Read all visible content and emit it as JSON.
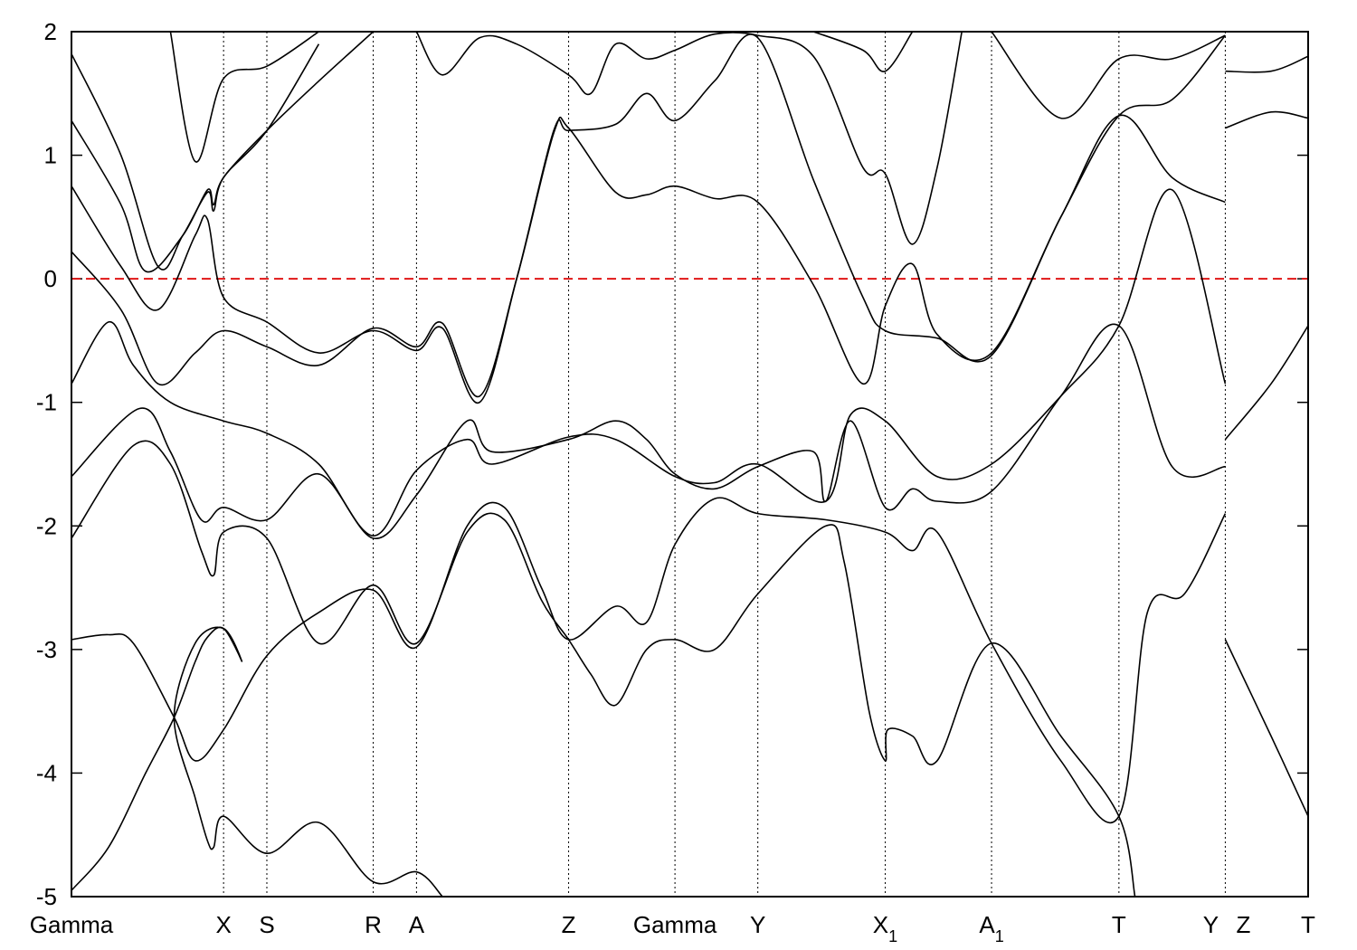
{
  "chart_data": {
    "type": "line",
    "title": "",
    "xlabel": "",
    "ylabel": "",
    "xlim": [
      0,
      1.0
    ],
    "ylim": [
      -5,
      2
    ],
    "yticks": [
      2,
      1,
      0,
      -1,
      -2,
      -3,
      -4,
      -5
    ],
    "ytick_labels": [
      "2",
      "1",
      "0",
      "-1",
      "-2",
      "-3",
      "-4",
      "-5"
    ],
    "grid": false,
    "legend": "none",
    "fermi_level": {
      "value": 0,
      "color": "#dd0000",
      "style": "dashed"
    },
    "colors": {
      "bands": "#000000"
    },
    "kpoints": [
      {
        "pos": 0.0,
        "label": "Gamma",
        "sub": ""
      },
      {
        "pos": 0.123,
        "label": "X",
        "sub": ""
      },
      {
        "pos": 0.158,
        "label": "S",
        "sub": ""
      },
      {
        "pos": 0.244,
        "label": "R",
        "sub": ""
      },
      {
        "pos": 0.279,
        "label": "A",
        "sub": ""
      },
      {
        "pos": 0.402,
        "label": "Z",
        "sub": ""
      },
      {
        "pos": 0.488,
        "label": "Gamma",
        "sub": ""
      },
      {
        "pos": 0.555,
        "label": "Y",
        "sub": ""
      },
      {
        "pos": 0.658,
        "label": "X",
        "sub": "1"
      },
      {
        "pos": 0.744,
        "label": "A",
        "sub": "1"
      },
      {
        "pos": 0.847,
        "label": "T",
        "sub": ""
      },
      {
        "pos": 0.933,
        "label": "Y",
        "sub": ""
      },
      {
        "pos": 0.933,
        "label": "Z",
        "sub": ""
      },
      {
        "pos": 1.0,
        "label": "T",
        "sub": ""
      }
    ],
    "series": [
      {
        "values": [
          [
            0,
            -4.95
          ],
          [
            0.03,
            -4.6
          ],
          [
            0.06,
            -4.0
          ],
          [
            0.083,
            -3.55
          ],
          [
            0.1,
            -3.1
          ],
          [
            0.11,
            -2.9
          ],
          [
            0.123,
            -2.83
          ],
          [
            0.138,
            -3.1
          ],
          [
            0.123,
            -2.83
          ],
          [
            0.1,
            -2.95
          ],
          [
            0.083,
            -3.55
          ],
          [
            0.1,
            -4.2
          ],
          [
            0.11,
            -4.55
          ],
          [
            0.115,
            -4.6
          ],
          [
            0.123,
            -4.35
          ],
          [
            0.158,
            -4.65
          ],
          [
            0.2,
            -4.4
          ],
          [
            0.244,
            -4.88
          ],
          [
            0.279,
            -4.8
          ],
          [
            0.3,
            -5.0
          ]
        ]
      },
      {
        "values": [
          [
            0,
            -2.92
          ],
          [
            0.03,
            -2.88
          ],
          [
            0.05,
            -2.95
          ],
          [
            0.083,
            -3.55
          ],
          [
            0.1,
            -3.9
          ],
          [
            0.123,
            -3.65
          ],
          [
            0.158,
            -3.05
          ],
          [
            0.2,
            -2.7
          ],
          [
            0.244,
            -2.52
          ],
          [
            0.279,
            -2.98
          ],
          [
            0.32,
            -2.0
          ],
          [
            0.35,
            -1.85
          ],
          [
            0.38,
            -2.5
          ],
          [
            0.402,
            -2.92
          ],
          [
            0.44,
            -2.65
          ],
          [
            0.465,
            -2.78
          ],
          [
            0.488,
            -2.15
          ],
          [
            0.52,
            -1.78
          ],
          [
            0.555,
            -1.9
          ],
          [
            0.61,
            -1.95
          ],
          [
            0.658,
            -2.05
          ],
          [
            0.68,
            -2.2
          ],
          [
            0.7,
            -2.05
          ],
          [
            0.744,
            -2.95
          ],
          [
            0.8,
            -3.9
          ],
          [
            0.847,
            -4.35
          ],
          [
            0.87,
            -2.7
          ],
          [
            0.9,
            -2.55
          ],
          [
            0.933,
            -1.9
          ]
        ]
      },
      {
        "values": [
          [
            0,
            -2.1
          ],
          [
            0.05,
            -1.35
          ],
          [
            0.08,
            -1.5
          ],
          [
            0.105,
            -2.2
          ],
          [
            0.115,
            -2.4
          ],
          [
            0.123,
            -2.05
          ],
          [
            0.158,
            -2.1
          ],
          [
            0.2,
            -2.95
          ],
          [
            0.244,
            -2.48
          ],
          [
            0.279,
            -2.95
          ],
          [
            0.32,
            -2.05
          ],
          [
            0.35,
            -1.95
          ],
          [
            0.38,
            -2.6
          ],
          [
            0.402,
            -2.92
          ],
          [
            0.42,
            -3.2
          ],
          [
            0.44,
            -3.45
          ],
          [
            0.465,
            -3.0
          ],
          [
            0.488,
            -2.92
          ],
          [
            0.52,
            -3.0
          ],
          [
            0.555,
            -2.55
          ],
          [
            0.61,
            -2.0
          ],
          [
            0.625,
            -2.3
          ],
          [
            0.645,
            -3.5
          ],
          [
            0.658,
            -3.9
          ],
          [
            0.66,
            -3.65
          ],
          [
            0.68,
            -3.7
          ],
          [
            0.7,
            -3.9
          ],
          [
            0.744,
            -2.95
          ],
          [
            0.8,
            -3.7
          ],
          [
            0.847,
            -4.35
          ],
          [
            0.86,
            -5.0
          ]
        ]
      },
      {
        "values": [
          [
            0,
            -1.6
          ],
          [
            0.055,
            -1.05
          ],
          [
            0.08,
            -1.4
          ],
          [
            0.105,
            -1.95
          ],
          [
            0.123,
            -1.85
          ],
          [
            0.158,
            -1.95
          ],
          [
            0.2,
            -1.58
          ],
          [
            0.244,
            -2.1
          ],
          [
            0.279,
            -1.75
          ],
          [
            0.32,
            -1.15
          ],
          [
            0.34,
            -1.4
          ],
          [
            0.402,
            -1.3
          ],
          [
            0.44,
            -1.15
          ],
          [
            0.465,
            -1.3
          ],
          [
            0.488,
            -1.58
          ],
          [
            0.52,
            -1.7
          ],
          [
            0.555,
            -1.52
          ],
          [
            0.6,
            -1.4
          ],
          [
            0.61,
            -1.8
          ],
          [
            0.63,
            -1.15
          ],
          [
            0.658,
            -1.85
          ],
          [
            0.68,
            -1.7
          ],
          [
            0.7,
            -1.8
          ],
          [
            0.744,
            -1.72
          ],
          [
            0.8,
            -0.95
          ],
          [
            0.847,
            -0.38
          ],
          [
            0.89,
            -1.52
          ],
          [
            0.933,
            -1.52
          ]
        ]
      },
      {
        "values": [
          [
            0,
            -0.85
          ],
          [
            0.03,
            -0.35
          ],
          [
            0.05,
            -0.7
          ],
          [
            0.08,
            -1.0
          ],
          [
            0.123,
            -1.15
          ],
          [
            0.158,
            -1.25
          ],
          [
            0.2,
            -1.5
          ],
          [
            0.244,
            -2.08
          ],
          [
            0.279,
            -1.55
          ],
          [
            0.32,
            -1.3
          ],
          [
            0.34,
            -1.5
          ],
          [
            0.402,
            -1.28
          ],
          [
            0.44,
            -1.3
          ],
          [
            0.488,
            -1.6
          ],
          [
            0.52,
            -1.65
          ],
          [
            0.555,
            -1.5
          ],
          [
            0.61,
            -1.8
          ],
          [
            0.63,
            -1.1
          ],
          [
            0.658,
            -1.15
          ],
          [
            0.7,
            -1.6
          ],
          [
            0.744,
            -1.5
          ],
          [
            0.8,
            -0.95
          ],
          [
            0.847,
            -0.38
          ],
          [
            0.89,
            0.72
          ],
          [
            0.933,
            -0.85
          ]
        ]
      },
      {
        "values": [
          [
            0,
            0.22
          ],
          [
            0.04,
            -0.25
          ],
          [
            0.07,
            -0.85
          ],
          [
            0.1,
            -0.6
          ],
          [
            0.123,
            -0.42
          ],
          [
            0.158,
            -0.55
          ],
          [
            0.2,
            -0.7
          ],
          [
            0.244,
            -0.4
          ],
          [
            0.279,
            -0.55
          ],
          [
            0.3,
            -0.36
          ],
          [
            0.33,
            -0.95
          ],
          [
            0.36,
            0.0
          ],
          [
            0.39,
            1.18
          ],
          [
            0.402,
            1.22
          ],
          [
            0.44,
            0.7
          ],
          [
            0.465,
            0.68
          ],
          [
            0.488,
            0.75
          ],
          [
            0.52,
            0.65
          ],
          [
            0.555,
            0.62
          ],
          [
            0.6,
            -0.05
          ],
          [
            0.64,
            -0.85
          ],
          [
            0.658,
            -0.22
          ],
          [
            0.68,
            0.12
          ],
          [
            0.7,
            -0.45
          ],
          [
            0.744,
            -0.6
          ],
          [
            0.8,
            0.5
          ],
          [
            0.847,
            1.32
          ],
          [
            0.89,
            0.82
          ],
          [
            0.933,
            0.62
          ]
        ]
      },
      {
        "values": [
          [
            0,
            0.75
          ],
          [
            0.04,
            0.1
          ],
          [
            0.07,
            -0.25
          ],
          [
            0.1,
            0.35
          ],
          [
            0.11,
            0.48
          ],
          [
            0.123,
            -0.15
          ],
          [
            0.158,
            -0.35
          ],
          [
            0.2,
            -0.6
          ],
          [
            0.244,
            -0.42
          ],
          [
            0.279,
            -0.58
          ],
          [
            0.3,
            -0.4
          ],
          [
            0.33,
            -1.0
          ],
          [
            0.36,
            0.0
          ],
          [
            0.39,
            1.2
          ],
          [
            0.402,
            1.2
          ],
          [
            0.44,
            1.25
          ],
          [
            0.465,
            1.5
          ],
          [
            0.488,
            1.28
          ],
          [
            0.52,
            1.6
          ],
          [
            0.555,
            1.95
          ],
          [
            0.6,
            0.8
          ],
          [
            0.64,
            -0.15
          ],
          [
            0.658,
            -0.42
          ],
          [
            0.7,
            -0.48
          ],
          [
            0.744,
            -0.62
          ],
          [
            0.8,
            0.5
          ],
          [
            0.847,
            1.32
          ],
          [
            0.89,
            1.45
          ],
          [
            0.933,
            1.97
          ]
        ]
      },
      {
        "values": [
          [
            0,
            1.28
          ],
          [
            0.04,
            0.6
          ],
          [
            0.06,
            0.06
          ],
          [
            0.09,
            0.35
          ],
          [
            0.11,
            0.72
          ],
          [
            0.115,
            0.6
          ],
          [
            0.123,
            0.82
          ],
          [
            0.158,
            1.2
          ],
          [
            0.2,
            1.6
          ],
          [
            0.244,
            2.0
          ]
        ]
      },
      {
        "values": [
          [
            0,
            1.82
          ],
          [
            0.04,
            1.0
          ],
          [
            0.07,
            0.1
          ],
          [
            0.09,
            0.35
          ],
          [
            0.11,
            0.7
          ],
          [
            0.115,
            0.55
          ],
          [
            0.123,
            0.82
          ],
          [
            0.158,
            1.2
          ],
          [
            0.2,
            1.9
          ]
        ]
      },
      {
        "values": [
          [
            0.08,
            2.0
          ],
          [
            0.1,
            0.95
          ],
          [
            0.123,
            1.62
          ],
          [
            0.158,
            1.72
          ],
          [
            0.2,
            2.0
          ]
        ]
      },
      {
        "values": [
          [
            0.279,
            2.0
          ],
          [
            0.3,
            1.65
          ],
          [
            0.33,
            1.95
          ],
          [
            0.36,
            1.9
          ],
          [
            0.402,
            1.65
          ],
          [
            0.42,
            1.5
          ],
          [
            0.44,
            1.9
          ],
          [
            0.465,
            1.78
          ],
          [
            0.488,
            1.85
          ],
          [
            0.52,
            1.98
          ],
          [
            0.555,
            1.97
          ],
          [
            0.6,
            1.8
          ],
          [
            0.64,
            0.9
          ],
          [
            0.658,
            0.85
          ],
          [
            0.68,
            0.28
          ],
          [
            0.7,
            0.9
          ],
          [
            0.72,
            2.0
          ]
        ]
      },
      {
        "values": [
          [
            0.6,
            2.0
          ],
          [
            0.64,
            1.85
          ],
          [
            0.658,
            1.68
          ],
          [
            0.68,
            2.0
          ]
        ]
      },
      {
        "values": [
          [
            0.744,
            2.0
          ],
          [
            0.8,
            1.3
          ],
          [
            0.847,
            1.78
          ],
          [
            0.89,
            1.78
          ],
          [
            0.933,
            1.97
          ]
        ]
      },
      {
        "values": [
          [
            0.933,
            -1.3
          ],
          [
            0.97,
            -0.85
          ],
          [
            1.0,
            -0.38
          ]
        ]
      },
      {
        "values": [
          [
            0.933,
            -2.92
          ],
          [
            0.97,
            -3.7
          ],
          [
            1.0,
            -4.35
          ]
        ]
      },
      {
        "values": [
          [
            0.933,
            1.22
          ],
          [
            0.97,
            1.35
          ],
          [
            1.0,
            1.3
          ]
        ]
      },
      {
        "values": [
          [
            0.933,
            1.68
          ],
          [
            0.97,
            1.68
          ],
          [
            1.0,
            1.8
          ]
        ]
      }
    ]
  }
}
